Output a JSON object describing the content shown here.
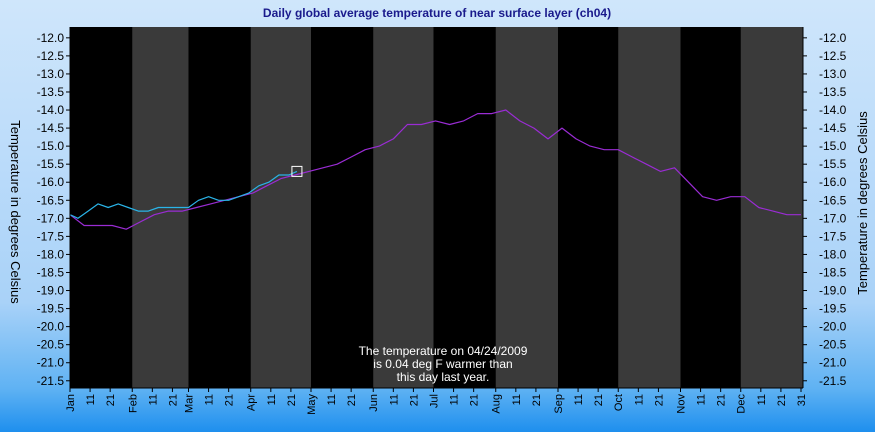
{
  "chart_data": {
    "type": "line",
    "title": "Daily global average temperature of near surface layer (ch04)",
    "ylabel": "Temperature in degrees Celsius",
    "ylabel_right": "Temperature in degrees Celsius",
    "ylim": [
      -21.7,
      -11.7
    ],
    "yticks": [
      -12.0,
      -12.5,
      -13.0,
      -13.5,
      -14.0,
      -14.5,
      -15.0,
      -15.5,
      -16.0,
      -16.5,
      -17.0,
      -17.5,
      -18.0,
      -18.5,
      -19.0,
      -19.5,
      -20.0,
      -20.5,
      -21.0,
      -21.5
    ],
    "ytick_labels": [
      "-12.0",
      "-12.5",
      "-13.0",
      "-13.5",
      "-14.0",
      "-14.5",
      "-15.0",
      "-15.5",
      "-16.0",
      "-16.5",
      "-17.0",
      "-17.5",
      "-18.0",
      "-18.5",
      "-19.0",
      "-19.5",
      "-20.0",
      "-20.5",
      "-21.0",
      "-21.5"
    ],
    "xlim": [
      1,
      366
    ],
    "months": [
      {
        "label": "Jan",
        "start": 1,
        "days": 31
      },
      {
        "label": "Feb",
        "start": 32,
        "days": 28
      },
      {
        "label": "Mar",
        "start": 60,
        "days": 31
      },
      {
        "label": "Apr",
        "start": 91,
        "days": 30
      },
      {
        "label": "May",
        "start": 121,
        "days": 31
      },
      {
        "label": "Jun",
        "start": 152,
        "days": 30
      },
      {
        "label": "Jul",
        "start": 182,
        "days": 31
      },
      {
        "label": "Aug",
        "start": 213,
        "days": 31
      },
      {
        "label": "Sep",
        "start": 244,
        "days": 30
      },
      {
        "label": "Oct",
        "start": 274,
        "days": 31
      },
      {
        "label": "Nov",
        "start": 305,
        "days": 30
      },
      {
        "label": "Dec",
        "start": 335,
        "days": 31
      }
    ],
    "minor_tick_labels": [
      "11",
      "21"
    ],
    "end_label": "31",
    "colors": {
      "plot_bg": "#000000",
      "band_alt": "#3a3a3a",
      "series_prev": "#9a2cd4",
      "series_curr": "#2ab4e8",
      "marker": "#ffffff"
    },
    "series": [
      {
        "id": "prev",
        "color": "#9a2cd4",
        "x": [
          1,
          8,
          15,
          22,
          29,
          36,
          43,
          50,
          57,
          64,
          71,
          78,
          85,
          92,
          99,
          106,
          113,
          120,
          127,
          134,
          141,
          148,
          155,
          162,
          169,
          176,
          183,
          190,
          197,
          204,
          211,
          218,
          225,
          232,
          239,
          246,
          253,
          260,
          267,
          274,
          281,
          288,
          295,
          302,
          309,
          316,
          323,
          330,
          337,
          344,
          351,
          358,
          365
        ],
        "y": [
          -16.9,
          -17.2,
          -17.2,
          -17.2,
          -17.3,
          -17.1,
          -16.9,
          -16.8,
          -16.8,
          -16.7,
          -16.6,
          -16.5,
          -16.4,
          -16.3,
          -16.1,
          -15.9,
          -15.8,
          -15.7,
          -15.6,
          -15.5,
          -15.3,
          -15.1,
          -15.0,
          -14.8,
          -14.4,
          -14.4,
          -14.3,
          -14.4,
          -14.3,
          -14.1,
          -14.1,
          -14.0,
          -14.3,
          -14.5,
          -14.8,
          -14.5,
          -14.8,
          -15.0,
          -15.1,
          -15.1,
          -15.3,
          -15.5,
          -15.7,
          -15.6,
          -16.0,
          -16.4,
          -16.5,
          -16.4,
          -16.4,
          -16.7,
          -16.8,
          -16.9,
          -16.9
        ]
      },
      {
        "id": "curr",
        "color": "#2ab4e8",
        "x": [
          1,
          5,
          10,
          15,
          20,
          25,
          30,
          35,
          40,
          45,
          50,
          55,
          60,
          65,
          70,
          75,
          80,
          85,
          90,
          95,
          100,
          105,
          110,
          114
        ],
        "y": [
          -16.9,
          -17.0,
          -16.8,
          -16.6,
          -16.7,
          -16.6,
          -16.7,
          -16.8,
          -16.8,
          -16.7,
          -16.7,
          -16.7,
          -16.7,
          -16.5,
          -16.4,
          -16.5,
          -16.5,
          -16.4,
          -16.3,
          -16.1,
          -16.0,
          -15.8,
          -15.8,
          -15.7
        ]
      }
    ],
    "marker": {
      "x": 114,
      "y": -15.7
    },
    "annotation": [
      "The temperature on 04/24/2009",
      "is  0.04 deg F warmer than",
      "this day last year."
    ]
  }
}
